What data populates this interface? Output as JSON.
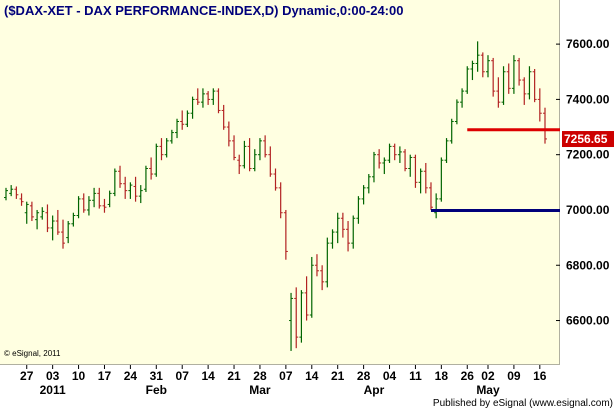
{
  "title": "($DAX-XET - DAX PERFORMANCE-INDEX,D) Dynamic,0:00-24:00",
  "copyright": "© eSignal, 2011",
  "footer": "Published by eSignal (www.esignal.com)",
  "colors": {
    "plot_background": "#ffffe1",
    "up_bar": "#006400",
    "down_bar": "#b22222",
    "resistance_line": "#dd0000",
    "support_line": "#00007a",
    "last_price_box": "#cc0000"
  },
  "chart_data": {
    "type": "ohlc",
    "title": "($DAX-XET - DAX PERFORMANCE-INDEX,D) Dynamic,0:00-24:00",
    "y_axis": {
      "ylim": [
        6450,
        7680
      ],
      "ticks": [
        6600,
        6800,
        7000,
        7200,
        7400,
        7600
      ],
      "tick_labels": [
        "6600.00",
        "6800.00",
        "7000.00",
        "7200.00",
        "7400.00",
        "7600.00"
      ],
      "position": "right"
    },
    "x_axis": {
      "day_labels": [
        "27",
        "03",
        "10",
        "17",
        "24",
        "31",
        "07",
        "14",
        "21",
        "28",
        "07",
        "14",
        "21",
        "28",
        "04",
        "11",
        "18",
        "26",
        "02",
        "09",
        "16"
      ],
      "day_label_bar_index": [
        4,
        9,
        14,
        19,
        24,
        29,
        34,
        39,
        44,
        49,
        54,
        59,
        64,
        69,
        74,
        79,
        84,
        89,
        93,
        98,
        103
      ],
      "month_labels": [
        "2011",
        "Feb",
        "Mar",
        "Apr",
        "May"
      ],
      "month_label_bar_index": [
        9,
        29,
        49,
        71,
        93
      ]
    },
    "last_price": "7256.65",
    "horizontal_lines": [
      {
        "role": "resistance",
        "value": 7290,
        "from_bar": 89,
        "to_bar": "end"
      },
      {
        "role": "support",
        "value": 6998,
        "from_bar": 82,
        "to_bar": "end"
      }
    ],
    "bars": [
      [
        7045,
        7080,
        7035,
        7070
      ],
      [
        7060,
        7090,
        7050,
        7075
      ],
      [
        7075,
        7085,
        7040,
        7055
      ],
      [
        7040,
        7060,
        7015,
        7030
      ],
      [
        6990,
        7030,
        6950,
        7020
      ],
      [
        7015,
        7030,
        6960,
        6975
      ],
      [
        6965,
        7000,
        6930,
        6990
      ],
      [
        6975,
        7010,
        6965,
        6995
      ],
      [
        6990,
        7020,
        6920,
        6935
      ],
      [
        6935,
        6980,
        6890,
        6960
      ],
      [
        6960,
        7000,
        6910,
        6920
      ],
      [
        6920,
        6965,
        6860,
        6880
      ],
      [
        6900,
        6960,
        6880,
        6950
      ],
      [
        6950,
        6990,
        6940,
        6980
      ],
      [
        6980,
        7050,
        6970,
        7040
      ],
      [
        7040,
        7060,
        6990,
        7000
      ],
      [
        7000,
        7050,
        6980,
        7035
      ],
      [
        7035,
        7080,
        7010,
        7060
      ],
      [
        7060,
        7080,
        7005,
        7015
      ],
      [
        7015,
        7040,
        6990,
        7010
      ],
      [
        7020,
        7070,
        7010,
        7060
      ],
      [
        7060,
        7150,
        7050,
        7140
      ],
      [
        7140,
        7160,
        7080,
        7095
      ],
      [
        7095,
        7120,
        7040,
        7070
      ],
      [
        7070,
        7100,
        7040,
        7090
      ],
      [
        7085,
        7120,
        7030,
        7050
      ],
      [
        7050,
        7090,
        7025,
        7070
      ],
      [
        7075,
        7160,
        7065,
        7150
      ],
      [
        7150,
        7190,
        7110,
        7130
      ],
      [
        7130,
        7240,
        7120,
        7230
      ],
      [
        7230,
        7260,
        7180,
        7200
      ],
      [
        7200,
        7260,
        7190,
        7250
      ],
      [
        7250,
        7290,
        7240,
        7280
      ],
      [
        7280,
        7330,
        7260,
        7320
      ],
      [
        7320,
        7360,
        7290,
        7310
      ],
      [
        7310,
        7360,
        7300,
        7350
      ],
      [
        7350,
        7410,
        7330,
        7400
      ],
      [
        7400,
        7440,
        7380,
        7390
      ],
      [
        7390,
        7440,
        7370,
        7420
      ],
      [
        7420,
        7430,
        7380,
        7400
      ],
      [
        7400,
        7440,
        7380,
        7430
      ],
      [
        7430,
        7440,
        7350,
        7360
      ],
      [
        7360,
        7380,
        7290,
        7300
      ],
      [
        7300,
        7320,
        7230,
        7250
      ],
      [
        7250,
        7270,
        7180,
        7190
      ],
      [
        7180,
        7200,
        7130,
        7160
      ],
      [
        7160,
        7250,
        7150,
        7230
      ],
      [
        7230,
        7260,
        7140,
        7150
      ],
      [
        7150,
        7220,
        7140,
        7200
      ],
      [
        7200,
        7260,
        7180,
        7250
      ],
      [
        7250,
        7270,
        7190,
        7200
      ],
      [
        7200,
        7230,
        7120,
        7130
      ],
      [
        7130,
        7150,
        7070,
        7080
      ],
      [
        7080,
        7100,
        6970,
        6990
      ],
      [
        6990,
        7000,
        6820,
        6850
      ],
      [
        6600,
        6700,
        6490,
        6680
      ],
      [
        6680,
        6720,
        6500,
        6540
      ],
      [
        6540,
        6710,
        6520,
        6700
      ],
      [
        6700,
        6760,
        6600,
        6620
      ],
      [
        6620,
        6830,
        6610,
        6800
      ],
      [
        6800,
        6840,
        6760,
        6780
      ],
      [
        6780,
        6800,
        6710,
        6740
      ],
      [
        6740,
        6900,
        6720,
        6880
      ],
      [
        6880,
        6930,
        6860,
        6920
      ],
      [
        6920,
        6990,
        6880,
        6970
      ],
      [
        6970,
        6990,
        6900,
        6930
      ],
      [
        6930,
        6960,
        6850,
        6880
      ],
      [
        6880,
        6980,
        6860,
        6970
      ],
      [
        6970,
        7050,
        6950,
        7040
      ],
      [
        7040,
        7090,
        7020,
        7080
      ],
      [
        7080,
        7130,
        7060,
        7120
      ],
      [
        7120,
        7210,
        7100,
        7200
      ],
      [
        7200,
        7220,
        7150,
        7170
      ],
      [
        7170,
        7190,
        7130,
        7180
      ],
      [
        7180,
        7240,
        7170,
        7230
      ],
      [
        7230,
        7240,
        7180,
        7200
      ],
      [
        7200,
        7230,
        7170,
        7210
      ],
      [
        7210,
        7220,
        7140,
        7150
      ],
      [
        7150,
        7200,
        7120,
        7190
      ],
      [
        7190,
        7200,
        7080,
        7100
      ],
      [
        7100,
        7150,
        7060,
        7140
      ],
      [
        7140,
        7170,
        7060,
        7080
      ],
      [
        7080,
        7100,
        7000,
        7010
      ],
      [
        6990,
        7060,
        6970,
        7040
      ],
      [
        7040,
        7190,
        7030,
        7180
      ],
      [
        7180,
        7260,
        7170,
        7250
      ],
      [
        7250,
        7330,
        7240,
        7320
      ],
      [
        7320,
        7400,
        7310,
        7390
      ],
      [
        7390,
        7440,
        7370,
        7430
      ],
      [
        7430,
        7520,
        7420,
        7510
      ],
      [
        7510,
        7540,
        7470,
        7530
      ],
      [
        7530,
        7610,
        7500,
        7560
      ],
      [
        7560,
        7570,
        7480,
        7500
      ],
      [
        7500,
        7560,
        7480,
        7540
      ],
      [
        7540,
        7550,
        7410,
        7430
      ],
      [
        7430,
        7480,
        7370,
        7390
      ],
      [
        7390,
        7520,
        7380,
        7500
      ],
      [
        7500,
        7530,
        7420,
        7440
      ],
      [
        7440,
        7560,
        7420,
        7540
      ],
      [
        7540,
        7550,
        7450,
        7470
      ],
      [
        7470,
        7480,
        7380,
        7420
      ],
      [
        7420,
        7520,
        7400,
        7500
      ],
      [
        7500,
        7510,
        7390,
        7400
      ],
      [
        7400,
        7440,
        7320,
        7350
      ],
      [
        7350,
        7370,
        7240,
        7257
      ]
    ]
  }
}
